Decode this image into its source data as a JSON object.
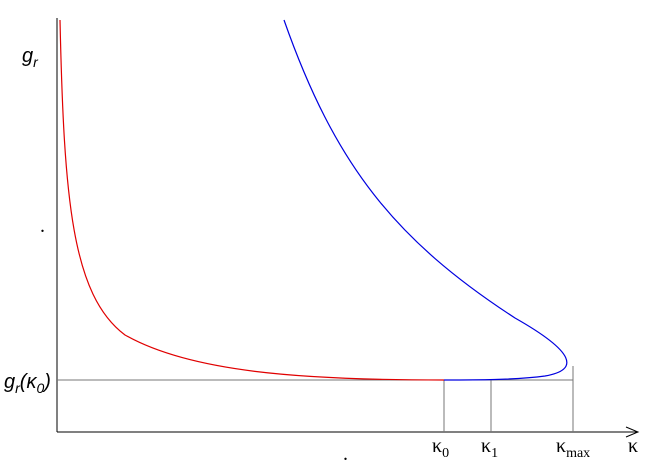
{
  "axes": {
    "y_label": {
      "main": "g",
      "sub": "r"
    },
    "x_label": "κ"
  },
  "level_label": {
    "main": "g",
    "sub": "r",
    "open": "(κ",
    "arg_sub": "0",
    "close": ")"
  },
  "x_markers": [
    {
      "main": "κ",
      "sub": "0"
    },
    {
      "main": "κ",
      "sub": "1"
    },
    {
      "main": "κ",
      "sub": "max"
    }
  ],
  "stray_marks": [
    ".",
    "."
  ]
}
